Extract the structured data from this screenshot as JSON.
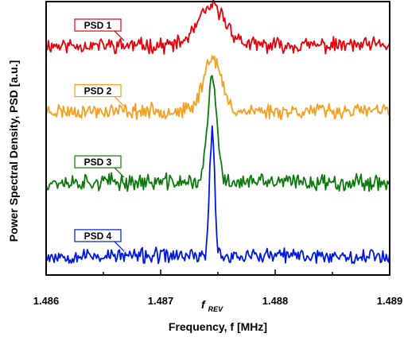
{
  "chart_data": {
    "type": "line",
    "xlabel": "Frequency, f [MHz]",
    "ylabel": "Power Spectral Density, PSD [a.u.]",
    "xlim": [
      1.486,
      1.489
    ],
    "x_ticks": [
      "1.486",
      "1.487",
      "1.488",
      "1.489"
    ],
    "peak_marker": {
      "label": "f",
      "subscript": "REV",
      "x": 1.48745
    },
    "grid": false,
    "y_ticks_shown": false,
    "series": [
      {
        "name": "PSD 1",
        "color": "#e8000b",
        "baseline": 0.84,
        "peak": 0.14,
        "sigma": 0.00012,
        "noise": 0.022,
        "seed": 11
      },
      {
        "name": "PSD 2",
        "color": "#f5a020",
        "baseline": 0.6,
        "peak": 0.2,
        "sigma": 7.5e-05,
        "noise": 0.022,
        "seed": 23
      },
      {
        "name": "PSD 3",
        "color": "#0c7a0c",
        "baseline": 0.34,
        "peak": 0.38,
        "sigma": 4e-05,
        "noise": 0.024,
        "seed": 37
      },
      {
        "name": "PSD 4",
        "color": "#0018e0",
        "baseline": 0.07,
        "peak": 0.46,
        "sigma": 2.2e-05,
        "noise": 0.022,
        "seed": 53
      }
    ]
  }
}
